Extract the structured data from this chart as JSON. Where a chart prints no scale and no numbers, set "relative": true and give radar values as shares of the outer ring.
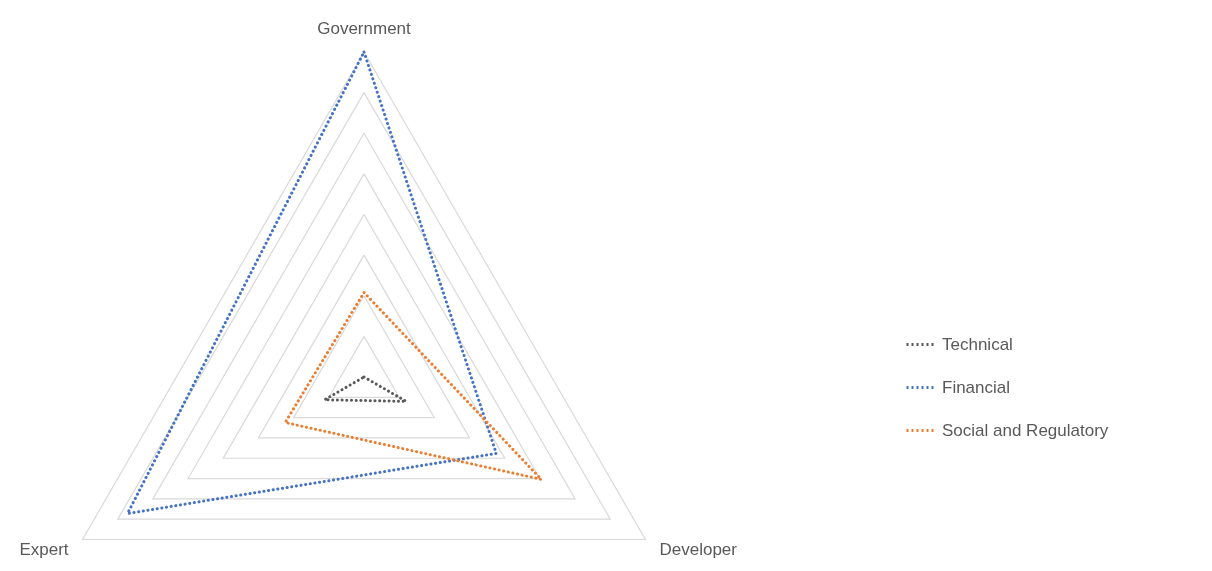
{
  "chart_data": {
    "type": "radar",
    "relative": true,
    "categories": [
      "Government",
      "Developer",
      "Expert"
    ],
    "series": [
      {
        "name": "Technical",
        "color": "#595959",
        "values": [
          0.0,
          0.15,
          0.14
        ]
      },
      {
        "name": "Financial",
        "color": "#4472c4",
        "values": [
          1.0,
          0.47,
          0.84
        ]
      },
      {
        "name": "Social and Regulatory",
        "color": "#ed7d31",
        "values": [
          0.26,
          0.63,
          0.28
        ]
      }
    ],
    "grid": true,
    "legend": "right",
    "line_style": "dotted",
    "marker": "none"
  }
}
